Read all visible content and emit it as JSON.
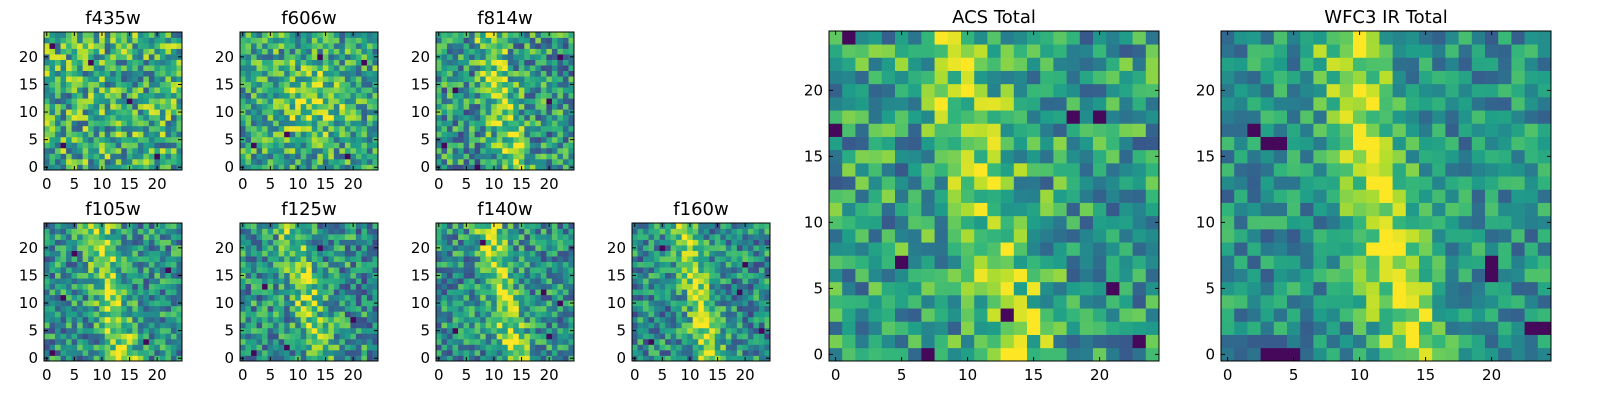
{
  "figure": {
    "colormap": "viridis",
    "vmin": 0,
    "vmax": 1
  },
  "chart_data": [
    {
      "type": "heatmap",
      "title": "f435w",
      "size": 25,
      "xticks": [
        0,
        5,
        10,
        15,
        20
      ],
      "yticks": [
        0,
        5,
        10,
        15,
        20
      ],
      "seed": 11,
      "base": 0.62,
      "noise": 0.34,
      "signal": 0.05,
      "shape": "none",
      "dark_pixels": [
        [
          3,
          4
        ],
        [
          8,
          19
        ],
        [
          20,
          2
        ],
        [
          15,
          12
        ],
        [
          1,
          22
        ]
      ]
    },
    {
      "type": "heatmap",
      "title": "f606w",
      "size": 25,
      "xticks": [
        0,
        5,
        10,
        15,
        20
      ],
      "yticks": [
        0,
        5,
        10,
        15,
        20
      ],
      "seed": 23,
      "base": 0.58,
      "noise": 0.3,
      "signal": 0.25,
      "shape": "central",
      "dark_pixels": [
        [
          8,
          6
        ],
        [
          19,
          2
        ],
        [
          22,
          19
        ],
        [
          2,
          4
        ],
        [
          14,
          20
        ]
      ]
    },
    {
      "type": "heatmap",
      "title": "f814w",
      "size": 25,
      "xticks": [
        0,
        5,
        10,
        15,
        20
      ],
      "yticks": [
        0,
        5,
        10,
        15,
        20
      ],
      "seed": 37,
      "base": 0.52,
      "noise": 0.32,
      "signal": 0.32,
      "shape": "streak",
      "dark_pixels": [
        [
          7,
          0
        ],
        [
          3,
          14
        ],
        [
          20,
          12
        ],
        [
          1,
          4
        ],
        [
          22,
          20
        ]
      ]
    },
    {
      "type": "heatmap",
      "title": "f105w",
      "size": 25,
      "xticks": [
        0,
        5,
        10,
        15,
        20
      ],
      "yticks": [
        0,
        5,
        10,
        15,
        20
      ],
      "seed": 41,
      "base": 0.5,
      "noise": 0.28,
      "signal": 0.35,
      "shape": "streak",
      "dark_pixels": [
        [
          3,
          11
        ],
        [
          22,
          16
        ],
        [
          1,
          1
        ],
        [
          18,
          3
        ],
        [
          5,
          19
        ]
      ]
    },
    {
      "type": "heatmap",
      "title": "f125w",
      "size": 25,
      "xticks": [
        0,
        5,
        10,
        15,
        20
      ],
      "yticks": [
        0,
        5,
        10,
        15,
        20
      ],
      "seed": 53,
      "base": 0.5,
      "noise": 0.3,
      "signal": 0.3,
      "shape": "streak",
      "dark_pixels": [
        [
          4,
          13
        ],
        [
          20,
          7
        ],
        [
          8,
          2
        ],
        [
          14,
          20
        ],
        [
          2,
          1
        ]
      ]
    },
    {
      "type": "heatmap",
      "title": "f140w",
      "size": 25,
      "xticks": [
        0,
        5,
        10,
        15,
        20
      ],
      "yticks": [
        0,
        5,
        10,
        15,
        20
      ],
      "seed": 67,
      "base": 0.5,
      "noise": 0.28,
      "signal": 0.35,
      "shape": "streak",
      "dark_pixels": [
        [
          19,
          12
        ],
        [
          22,
          10
        ],
        [
          3,
          5
        ],
        [
          8,
          21
        ],
        [
          20,
          4
        ]
      ]
    },
    {
      "type": "heatmap",
      "title": "f160w",
      "size": 25,
      "xticks": [
        0,
        5,
        10,
        15,
        20
      ],
      "yticks": [
        0,
        5,
        10,
        15,
        20
      ],
      "seed": 71,
      "base": 0.48,
      "noise": 0.28,
      "signal": 0.38,
      "shape": "streak",
      "dark_pixels": [
        [
          5,
          20
        ],
        [
          19,
          12
        ],
        [
          3,
          3
        ],
        [
          20,
          17
        ],
        [
          23,
          5
        ]
      ]
    },
    {
      "type": "heatmap",
      "title": "ACS Total",
      "size": 25,
      "xticks": [
        0,
        5,
        10,
        15,
        20
      ],
      "yticks": [
        0,
        5,
        10,
        15,
        20
      ],
      "seed": 83,
      "base": 0.55,
      "noise": 0.28,
      "signal": 0.3,
      "shape": "streak",
      "dark_pixels": [
        [
          1,
          24
        ],
        [
          0,
          17
        ],
        [
          5,
          7
        ],
        [
          7,
          0
        ],
        [
          18,
          18
        ],
        [
          20,
          18
        ],
        [
          21,
          5
        ],
        [
          23,
          1
        ],
        [
          13,
          3
        ]
      ]
    },
    {
      "type": "heatmap",
      "title": "WFC3 IR Total",
      "size": 25,
      "xticks": [
        0,
        5,
        10,
        15,
        20
      ],
      "yticks": [
        0,
        5,
        10,
        15,
        20
      ],
      "seed": 97,
      "base": 0.5,
      "noise": 0.22,
      "signal": 0.4,
      "shape": "streak",
      "dark_pixels": [
        [
          3,
          16
        ],
        [
          4,
          16
        ],
        [
          20,
          7
        ],
        [
          20,
          6
        ],
        [
          24,
          2
        ],
        [
          23,
          2
        ],
        [
          3,
          0
        ],
        [
          4,
          0
        ],
        [
          5,
          0
        ],
        [
          2,
          17
        ]
      ]
    }
  ]
}
